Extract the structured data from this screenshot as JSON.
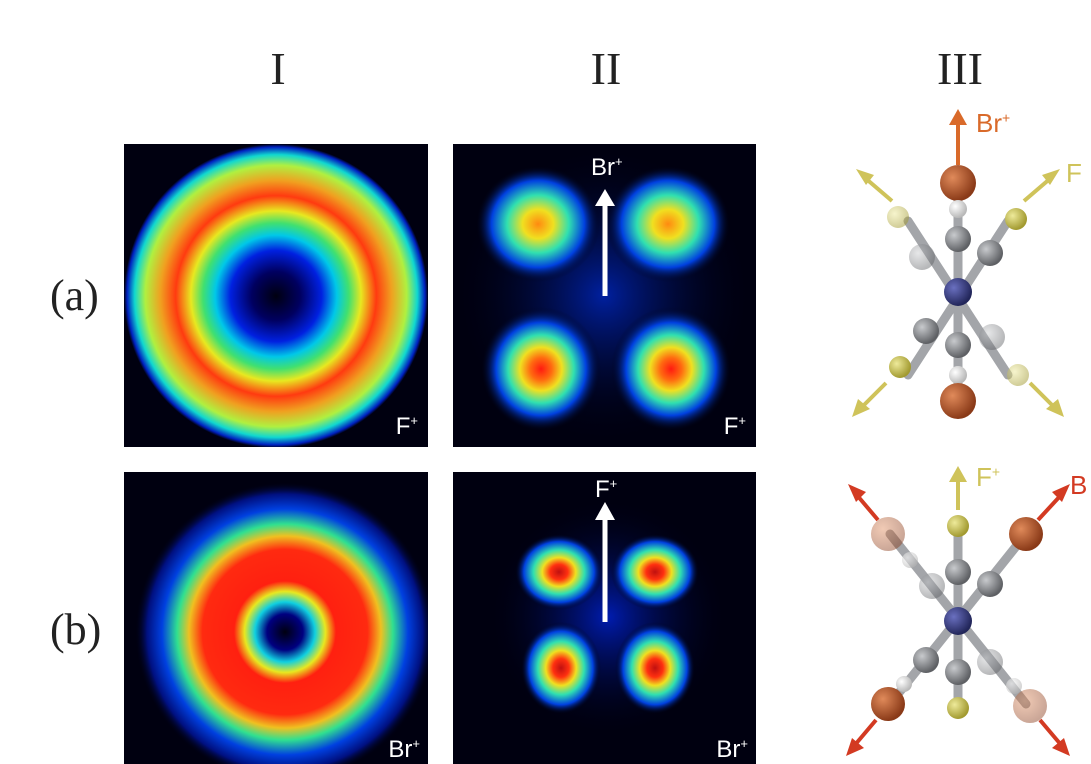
{
  "columns": [
    "I",
    "II",
    "III"
  ],
  "rows": [
    "(a)",
    "(b)"
  ],
  "panels": {
    "a_I_corner": "F",
    "a_II_corner": "F",
    "a_II_arrow": "Br",
    "b_I_corner": "Br",
    "b_II_corner": "Br",
    "b_II_arrow": "F"
  },
  "charge": "+",
  "molecule_a": {
    "top_label": "Br",
    "right_label": "F"
  },
  "molecule_b": {
    "top_label": "F",
    "right_label": "B"
  },
  "colors": {
    "bromine": "#b8552a",
    "fluorine": "#c9c25a",
    "br_arrow_a": "#d96a2a",
    "br_arrow_b": "#d33a22",
    "f_arrow": "#cfc35a",
    "carbon": "#8c8e93",
    "nitrogen": "#3b3f85"
  }
}
